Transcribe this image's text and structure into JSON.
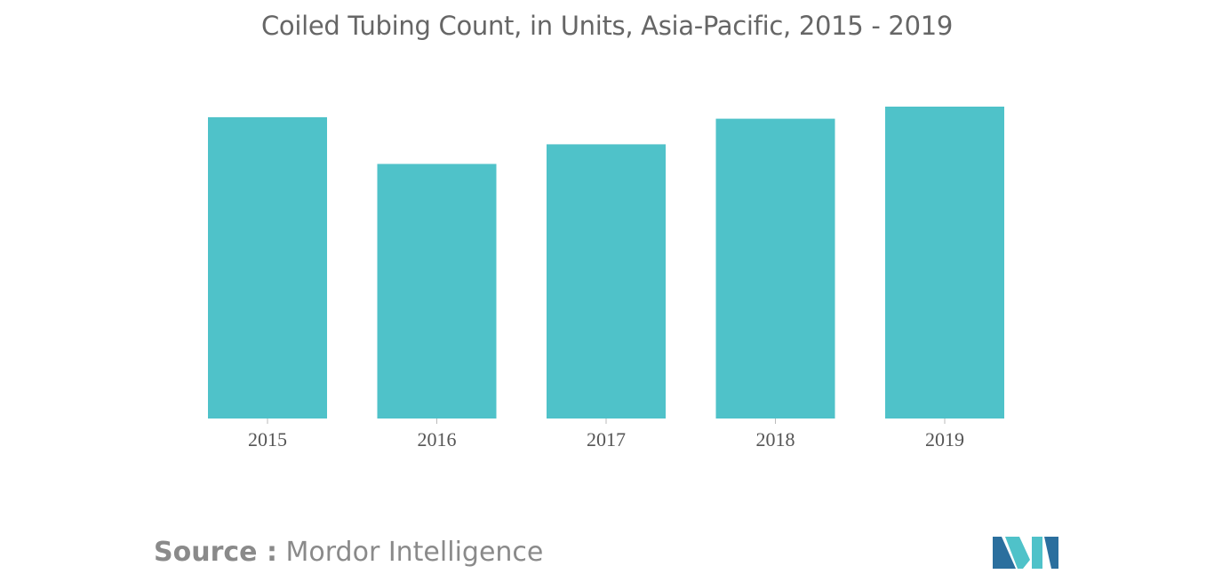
{
  "chart_data": {
    "type": "bar",
    "title": "Coiled Tubing Count, in Units, Asia-Pacific, 2015 - 2019",
    "categories": [
      "2015",
      "2016",
      "2017",
      "2018",
      "2019"
    ],
    "values": [
      100,
      84.5,
      91,
      99.5,
      103.5
    ],
    "xlabel": "",
    "ylabel": "",
    "ylim": [
      0,
      110
    ],
    "grid": false,
    "legend": "none",
    "bar_color": "#4fc2c9"
  },
  "source": {
    "label": "Source :",
    "name": "Mordor Intelligence"
  },
  "colors": {
    "title": "#666666",
    "tick_label": "#555555",
    "logo_dark": "#2b6f9e",
    "logo_light": "#4fc2c9"
  }
}
